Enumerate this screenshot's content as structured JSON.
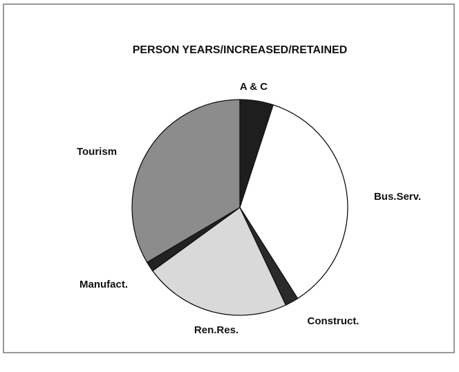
{
  "chart_data": {
    "type": "pie",
    "title": "PERSON YEARS/INCREASED/RETAINED",
    "categories": [
      "A & C",
      "Bus.Serv.",
      "Construct.",
      "Ren.Res.",
      "Manufact.",
      "Tourism"
    ],
    "values": [
      5,
      36,
      2,
      22,
      1.5,
      33.5
    ],
    "colors": [
      "#1e1e1e",
      "#ffffff",
      "#2a2a2a",
      "#d9d9d9",
      "#222222",
      "#8c8c8c"
    ]
  }
}
